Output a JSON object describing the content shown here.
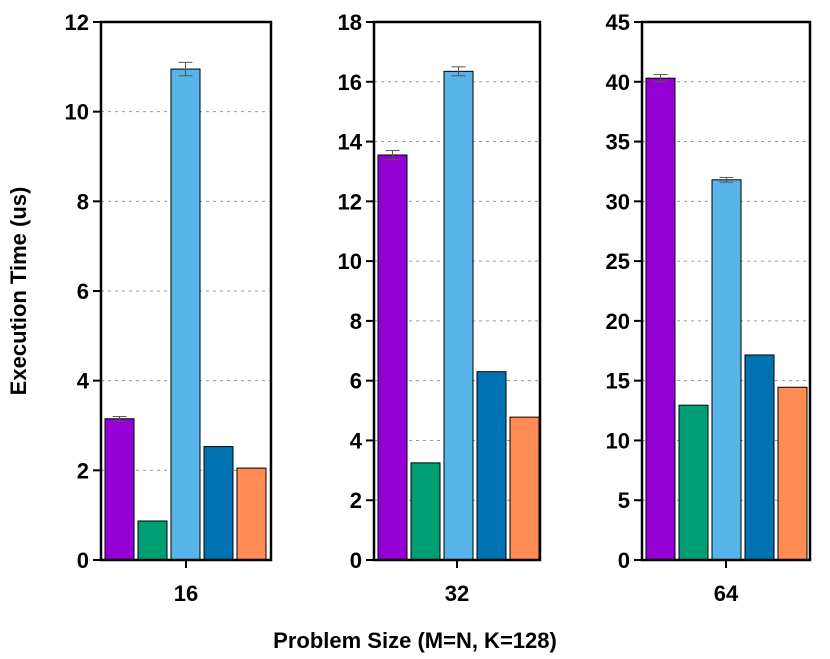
{
  "chart_data": {
    "type": "bar",
    "ylabel": "Execution Time (us)",
    "xlabel": "Problem Size (M=N, K=128)",
    "grid": true,
    "series_colors": [
      "#9400D3",
      "#009E73",
      "#56B4E9",
      "#0072B2",
      "#FF8C55"
    ],
    "panels": [
      {
        "category": "16",
        "ylim": [
          0,
          12
        ],
        "yticks": [
          "0",
          "2",
          "4",
          "6",
          "8",
          "10",
          "12"
        ],
        "values": [
          3.15,
          0.87,
          10.95,
          2.53,
          2.05
        ],
        "errors": [
          0.05,
          0,
          0.15,
          0,
          0
        ]
      },
      {
        "category": "32",
        "ylim": [
          0,
          18
        ],
        "yticks": [
          "0",
          "2",
          "4",
          "6",
          "8",
          "10",
          "12",
          "14",
          "16",
          "18"
        ],
        "values": [
          13.55,
          3.25,
          16.35,
          6.3,
          4.78
        ],
        "errors": [
          0.15,
          0,
          0.15,
          0,
          0
        ]
      },
      {
        "category": "64",
        "ylim": [
          0,
          45
        ],
        "yticks": [
          "0",
          "5",
          "10",
          "15",
          "20",
          "25",
          "30",
          "35",
          "40",
          "45"
        ],
        "values": [
          40.3,
          12.95,
          31.8,
          17.15,
          14.45
        ],
        "errors": [
          0.3,
          0,
          0.2,
          0,
          0
        ]
      }
    ]
  }
}
